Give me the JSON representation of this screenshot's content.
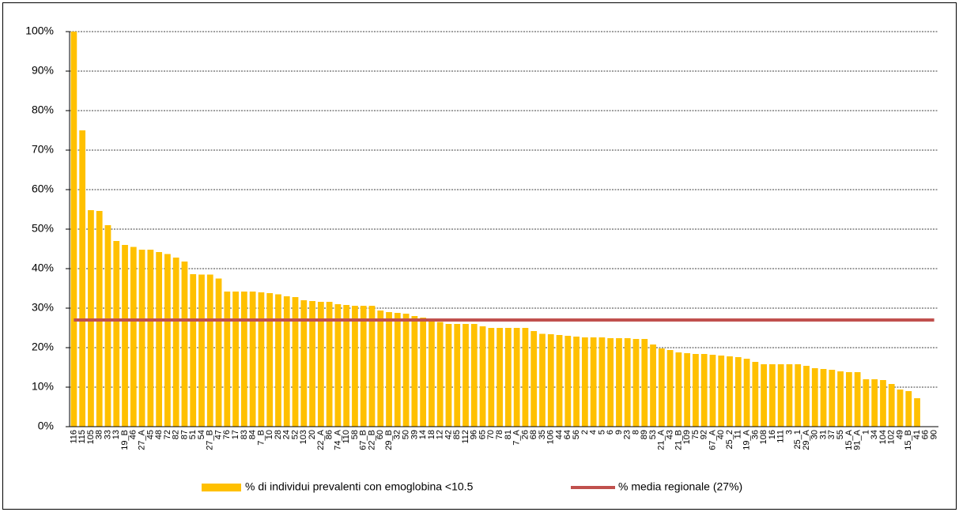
{
  "chart_data": {
    "type": "bar",
    "categories": [
      "116",
      "115",
      "105",
      "38",
      "33",
      "13",
      "19_B",
      "46",
      "27_A",
      "45",
      "48",
      "72",
      "82",
      "87",
      "51",
      "54",
      "27_B",
      "47",
      "76",
      "17",
      "83",
      "84",
      "7_B",
      "10",
      "28",
      "24",
      "52",
      "103",
      "20",
      "22_A",
      "86",
      "74_A",
      "110",
      "58",
      "67_B",
      "22_B",
      "60",
      "29_B",
      "32",
      "50",
      "39",
      "14",
      "18",
      "12",
      "42",
      "85",
      "112",
      "96",
      "65",
      "70",
      "78",
      "81",
      "7_A",
      "26",
      "68",
      "35",
      "106",
      "44",
      "64",
      "56",
      "2",
      "4",
      "5",
      "6",
      "9",
      "23",
      "8",
      "89",
      "53",
      "21_A",
      "43",
      "21_B",
      "109",
      "75",
      "92",
      "67_A",
      "40",
      "25_2",
      "11",
      "19_A",
      "36",
      "108",
      "16",
      "111",
      "3",
      "25_1",
      "29_A",
      "30",
      "31",
      "37",
      "55",
      "15_A",
      "91_A",
      "1",
      "34",
      "104",
      "102",
      "49",
      "15_B",
      "41",
      "66",
      "90"
    ],
    "series": [
      {
        "name": "% di individui prevalenti con emoglobina <10.5",
        "color": "#ffc000",
        "type": "bar",
        "values": [
          100,
          75,
          54.8,
          54.6,
          51,
          47,
          46,
          45.5,
          44.8,
          44.8,
          44.2,
          43.7,
          42.8,
          41.8,
          38.6,
          38.5,
          38.5,
          37.5,
          34.2,
          34.2,
          34.2,
          34.2,
          34,
          33.8,
          33.5,
          33,
          32.8,
          32,
          31.8,
          31.6,
          31.6,
          31,
          30.8,
          30.6,
          30.6,
          30.6,
          29.4,
          29,
          28.8,
          28.6,
          28,
          27.6,
          27.2,
          26.5,
          26,
          26,
          26,
          26,
          25.4,
          25,
          25,
          25,
          25,
          25,
          24.2,
          23.5,
          23.4,
          23.2,
          23,
          22.8,
          22.6,
          22.6,
          22.6,
          22.4,
          22.4,
          22.4,
          22.2,
          22.2,
          20.8,
          19.8,
          19.4,
          18.8,
          18.6,
          18.4,
          18.4,
          18.2,
          18,
          17.8,
          17.6,
          17.2,
          16.4,
          15.8,
          15.8,
          15.8,
          15.8,
          15.8,
          15.4,
          14.8,
          14.6,
          14.4,
          14,
          13.8,
          13.8,
          12,
          12,
          11.8,
          10.8,
          9.4,
          9,
          7.2,
          0,
          0
        ]
      },
      {
        "name": "% media regionale (27%)",
        "color": "#c0504d",
        "type": "line",
        "values": [
          27,
          27,
          27,
          27,
          27,
          27,
          27,
          27,
          27,
          27,
          27,
          27,
          27,
          27,
          27,
          27,
          27,
          27,
          27,
          27,
          27,
          27,
          27,
          27,
          27,
          27,
          27,
          27,
          27,
          27,
          27,
          27,
          27,
          27,
          27,
          27,
          27,
          27,
          27,
          27,
          27,
          27,
          27,
          27,
          27,
          27,
          27,
          27,
          27,
          27,
          27,
          27,
          27,
          27,
          27,
          27,
          27,
          27,
          27,
          27,
          27,
          27,
          27,
          27,
          27,
          27,
          27,
          27,
          27,
          27,
          27,
          27,
          27,
          27,
          27,
          27,
          27,
          27,
          27,
          27,
          27,
          27,
          27,
          27,
          27,
          27,
          27,
          27,
          27,
          27,
          27,
          27,
          27,
          27,
          27,
          27,
          27,
          27,
          27,
          27,
          27,
          27
        ]
      }
    ],
    "ylim": [
      0,
      100
    ],
    "yticks": [
      {
        "value": 0,
        "label": "0%"
      },
      {
        "value": 10,
        "label": "10%"
      },
      {
        "value": 20,
        "label": "20%"
      },
      {
        "value": 30,
        "label": "30%"
      },
      {
        "value": 40,
        "label": "40%"
      },
      {
        "value": 50,
        "label": "50%"
      },
      {
        "value": 60,
        "label": "60%"
      },
      {
        "value": 70,
        "label": "70%"
      },
      {
        "value": 80,
        "label": "80%"
      },
      {
        "value": 90,
        "label": "90%"
      },
      {
        "value": 100,
        "label": "100%"
      }
    ],
    "grid": true,
    "legend": "bottom"
  }
}
